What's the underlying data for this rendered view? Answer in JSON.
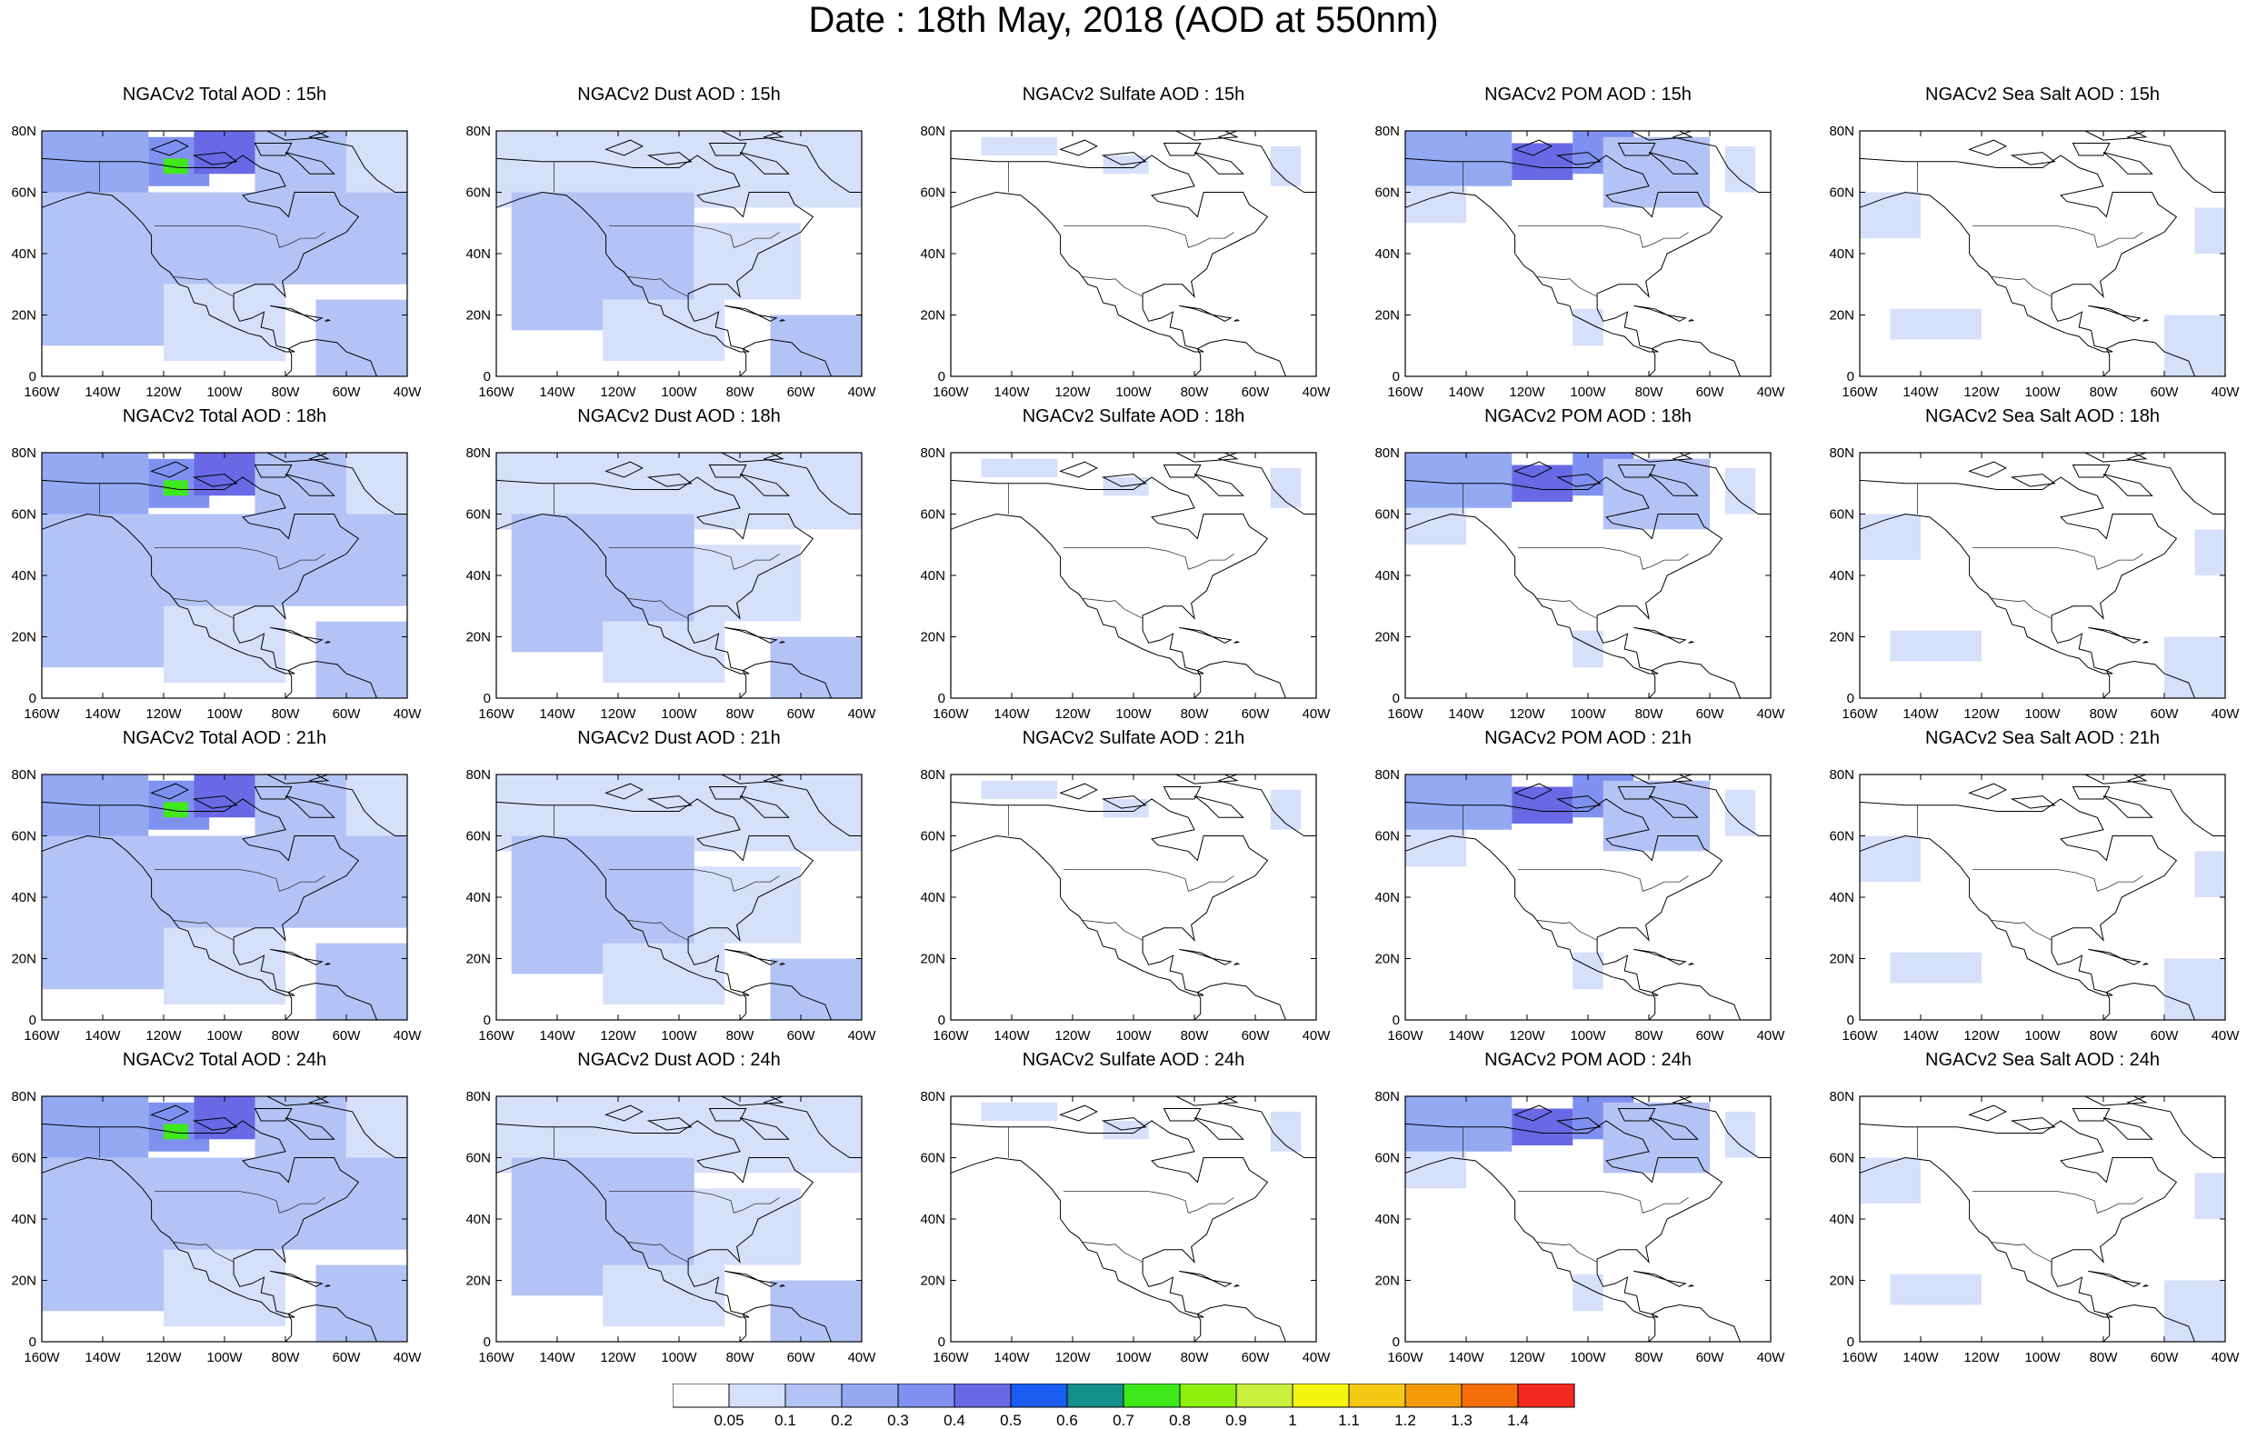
{
  "title": "Date : 18th May, 2018 (AOD at 550nm)",
  "x_tick_labels": [
    "160W",
    "140W",
    "120W",
    "100W",
    "80W",
    "60W",
    "40W"
  ],
  "y_tick_labels": [
    "0",
    "20N",
    "40N",
    "60N",
    "80N"
  ],
  "rows": [
    "15h",
    "18h",
    "21h",
    "24h"
  ],
  "columns": [
    {
      "key": "total",
      "titles": [
        "NGACv2 Total AOD : 15h",
        "NGACv2 Total AOD : 18h",
        "NGACv2 Total AOD : 21h",
        "NGACv2 Total AOD : 24h"
      ]
    },
    {
      "key": "dust",
      "titles": [
        "NGACv2 Dust AOD : 15h",
        "NGACv2 Dust AOD : 18h",
        "NGACv2 Dust AOD : 21h",
        "NGACv2 Dust AOD : 24h"
      ]
    },
    {
      "key": "sulfate",
      "titles": [
        "NGACv2 Sulfate AOD : 15h",
        "NGACv2 Sulfate AOD : 18h",
        "NGACv2 Sulfate AOD : 21h",
        "NGACv2 Sulfate AOD : 24h"
      ]
    },
    {
      "key": "pom",
      "titles": [
        "NGACv2 POM AOD : 15h",
        "NGACv2 POM AOD : 18h",
        "NGACv2 POM AOD : 21h",
        "NGACv2 POM AOD : 24h"
      ]
    },
    {
      "key": "seasalt",
      "titles": [
        "NGACv2 Sea Salt AOD : 15h",
        "NGACv2 Sea Salt AOD : 18h",
        "NGACv2 Sea Salt AOD : 21h",
        "NGACv2 Sea Salt  AOD : 24h"
      ]
    }
  ],
  "colorbar": {
    "labels": [
      "0.05",
      "0.1",
      "0.2",
      "0.3",
      "0.4",
      "0.5",
      "0.6",
      "0.7",
      "0.8",
      "0.9",
      "1",
      "1.1",
      "1.2",
      "1.3",
      "1.4"
    ],
    "colors": [
      "#ffffff",
      "#d6e0fb",
      "#b4c3f5",
      "#93a9f2",
      "#7f91f0",
      "#6969e6",
      "#1a5cf0",
      "#14908c",
      "#3ee81a",
      "#8ff00f",
      "#c8f03c",
      "#f5f50f",
      "#f5c814",
      "#f59b0a",
      "#f56e0a",
      "#f5281e"
    ]
  },
  "chart_data": {
    "type": "heatmap",
    "domain": {
      "lon": [
        -160,
        -40
      ],
      "lat": [
        0,
        80
      ]
    },
    "fields": {
      "total": [
        {
          "lon": [
            -160,
            -125
          ],
          "lat": [
            60,
            80
          ],
          "level": 3
        },
        {
          "lon": [
            -125,
            -105
          ],
          "lat": [
            62,
            78
          ],
          "level": 4
        },
        {
          "lon": [
            -120,
            -112
          ],
          "lat": [
            66,
            71
          ],
          "level": 8
        },
        {
          "lon": [
            -110,
            -90
          ],
          "lat": [
            66,
            80
          ],
          "level": 5
        },
        {
          "lon": [
            -160,
            -120
          ],
          "lat": [
            10,
            60
          ],
          "level": 2
        },
        {
          "lon": [
            -120,
            -40
          ],
          "lat": [
            30,
            60
          ],
          "level": 2
        },
        {
          "lon": [
            -90,
            -55
          ],
          "lat": [
            60,
            80
          ],
          "level": 2
        },
        {
          "lon": [
            -70,
            -40
          ],
          "lat": [
            0,
            25
          ],
          "level": 2
        },
        {
          "lon": [
            -120,
            -80
          ],
          "lat": [
            5,
            30
          ],
          "level": 1
        },
        {
          "lon": [
            -60,
            -40
          ],
          "lat": [
            60,
            80
          ],
          "level": 1
        }
      ],
      "dust": [
        {
          "lon": [
            -160,
            -40
          ],
          "lat": [
            55,
            80
          ],
          "level": 1
        },
        {
          "lon": [
            -155,
            -95
          ],
          "lat": [
            15,
            60
          ],
          "level": 2
        },
        {
          "lon": [
            -95,
            -60
          ],
          "lat": [
            25,
            50
          ],
          "level": 1
        },
        {
          "lon": [
            -70,
            -40
          ],
          "lat": [
            0,
            20
          ],
          "level": 2
        },
        {
          "lon": [
            -125,
            -85
          ],
          "lat": [
            5,
            25
          ],
          "level": 1
        }
      ],
      "sulfate": [
        {
          "lon": [
            -150,
            -125
          ],
          "lat": [
            72,
            78
          ],
          "level": 1
        },
        {
          "lon": [
            -110,
            -95
          ],
          "lat": [
            66,
            72
          ],
          "level": 1
        },
        {
          "lon": [
            -55,
            -45
          ],
          "lat": [
            62,
            75
          ],
          "level": 1
        }
      ],
      "pom": [
        {
          "lon": [
            -160,
            -125
          ],
          "lat": [
            62,
            80
          ],
          "level": 3
        },
        {
          "lon": [
            -125,
            -105
          ],
          "lat": [
            64,
            76
          ],
          "level": 5
        },
        {
          "lon": [
            -105,
            -85
          ],
          "lat": [
            66,
            80
          ],
          "level": 4
        },
        {
          "lon": [
            -160,
            -140
          ],
          "lat": [
            50,
            62
          ],
          "level": 1
        },
        {
          "lon": [
            -95,
            -60
          ],
          "lat": [
            55,
            78
          ],
          "level": 2
        },
        {
          "lon": [
            -105,
            -95
          ],
          "lat": [
            10,
            22
          ],
          "level": 1
        },
        {
          "lon": [
            -55,
            -45
          ],
          "lat": [
            60,
            75
          ],
          "level": 1
        }
      ],
      "seasalt": [
        {
          "lon": [
            -160,
            -140
          ],
          "lat": [
            45,
            60
          ],
          "level": 1
        },
        {
          "lon": [
            -150,
            -120
          ],
          "lat": [
            12,
            22
          ],
          "level": 1
        },
        {
          "lon": [
            -60,
            -40
          ],
          "lat": [
            0,
            20
          ],
          "level": 1
        },
        {
          "lon": [
            -50,
            -40
          ],
          "lat": [
            40,
            55
          ],
          "level": 1
        }
      ]
    }
  }
}
